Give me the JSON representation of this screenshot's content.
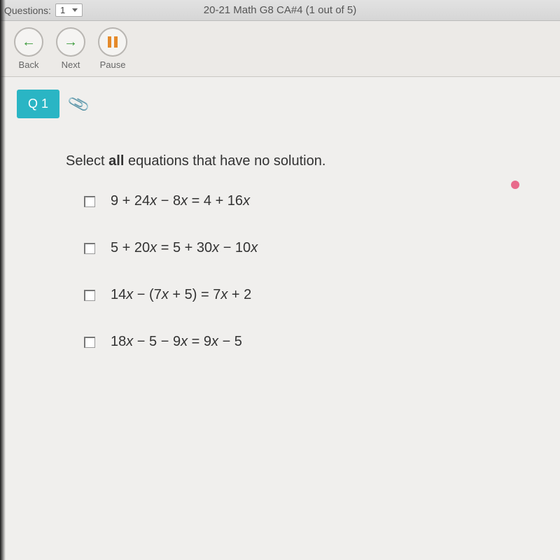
{
  "topbar": {
    "label": "Questions:",
    "dropdown_value": "1",
    "title": "20-21 Math G8 CA#4 (1 out of 5)"
  },
  "nav": {
    "back": "Back",
    "next": "Next",
    "pause": "Pause"
  },
  "question": {
    "badge": "Q 1",
    "prompt_pre": "Select ",
    "prompt_bold": "all",
    "prompt_post": " equations that have no solution.",
    "options": [
      "9 + 24x − 8x = 4 + 16x",
      "5 + 20x = 5 + 30x − 10x",
      "14x − (7x + 5) = 7x + 2",
      "18x − 5 − 9x = 9x − 5"
    ]
  },
  "colors": {
    "badge_bg": "#2ab5c4",
    "arrow": "#3a9a3a",
    "pause": "#e58a2a",
    "pinkdot": "#e86a8b"
  }
}
